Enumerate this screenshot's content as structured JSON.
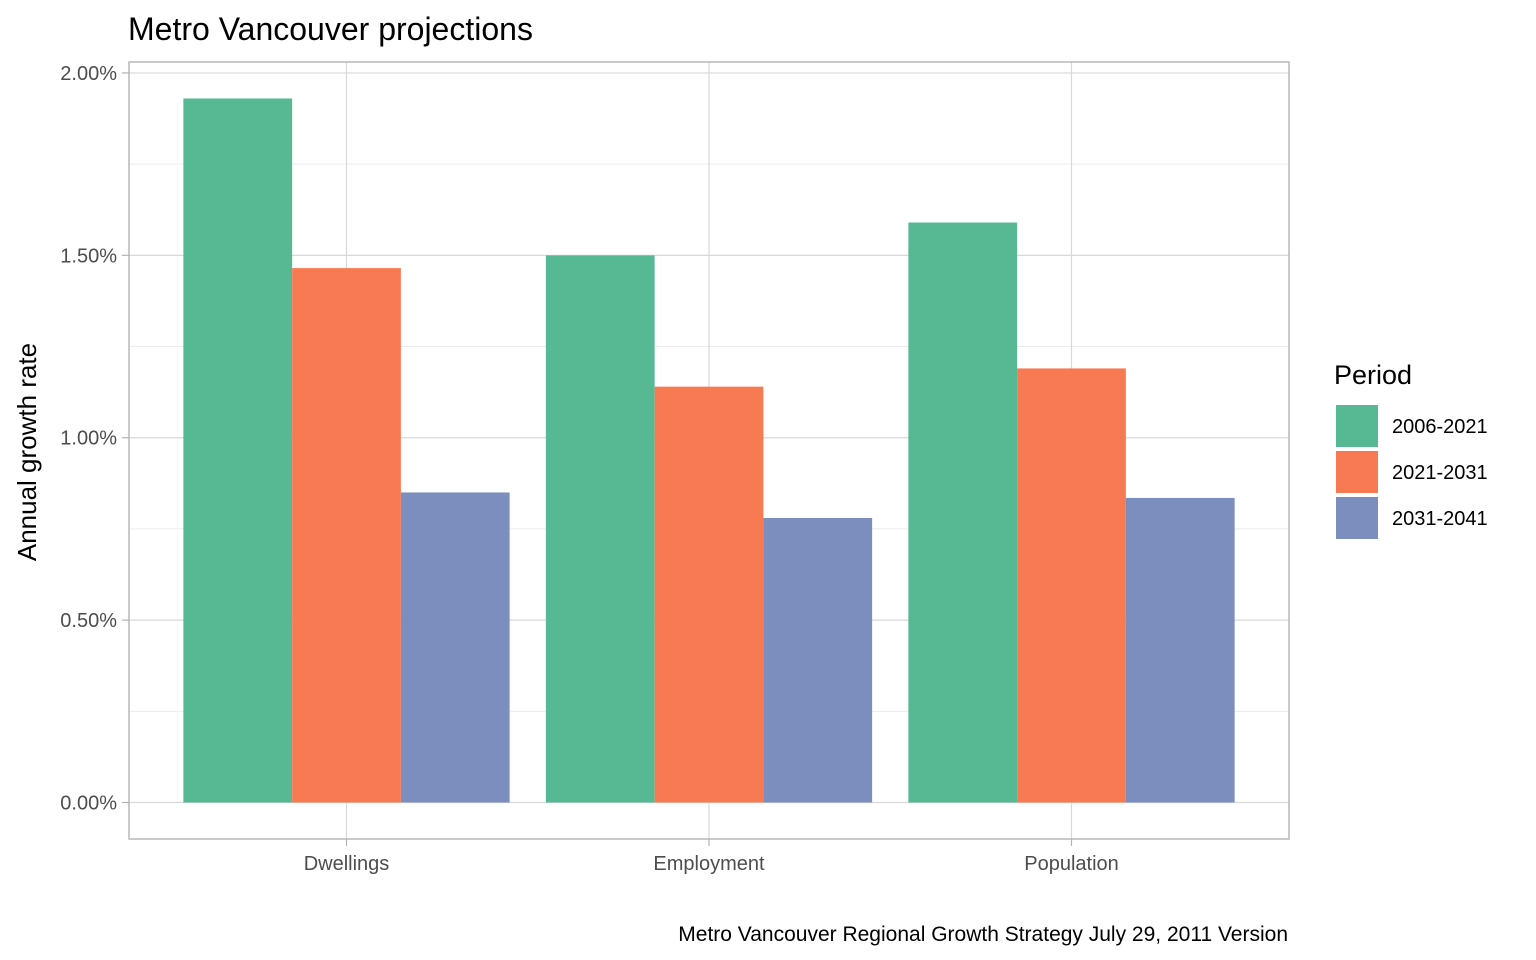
{
  "chart_data": {
    "type": "bar",
    "title": "Metro Vancouver projections",
    "xlabel": "",
    "ylabel": "Annual growth rate",
    "caption": "Metro Vancouver Regional Growth Strategy July 29, 2011 Version",
    "categories": [
      "Dwellings",
      "Employment",
      "Population"
    ],
    "series": [
      {
        "name": "2006-2021",
        "color": "#57b993",
        "values": [
          1.93,
          1.5,
          1.59
        ]
      },
      {
        "name": "2021-2031",
        "color": "#f77a52",
        "values": [
          1.465,
          1.14,
          1.19
        ]
      },
      {
        "name": "2031-2041",
        "color": "#7c8ebd",
        "values": [
          0.85,
          0.78,
          0.835
        ]
      }
    ],
    "ylim": [
      -0.1,
      2.03
    ],
    "yticks": [
      0,
      0.5,
      1.0,
      1.5,
      2.0
    ],
    "ytick_labels": [
      "0.00%",
      "0.50%",
      "1.00%",
      "1.50%",
      "2.00%"
    ],
    "grid": true,
    "legend": {
      "title": "Period",
      "position": "right"
    },
    "theme": {
      "panel_border": "#b3b3b3",
      "grid_major": "#d9d9d9",
      "grid_minor": "#ececec",
      "tick_color": "#b3b3b3"
    }
  }
}
